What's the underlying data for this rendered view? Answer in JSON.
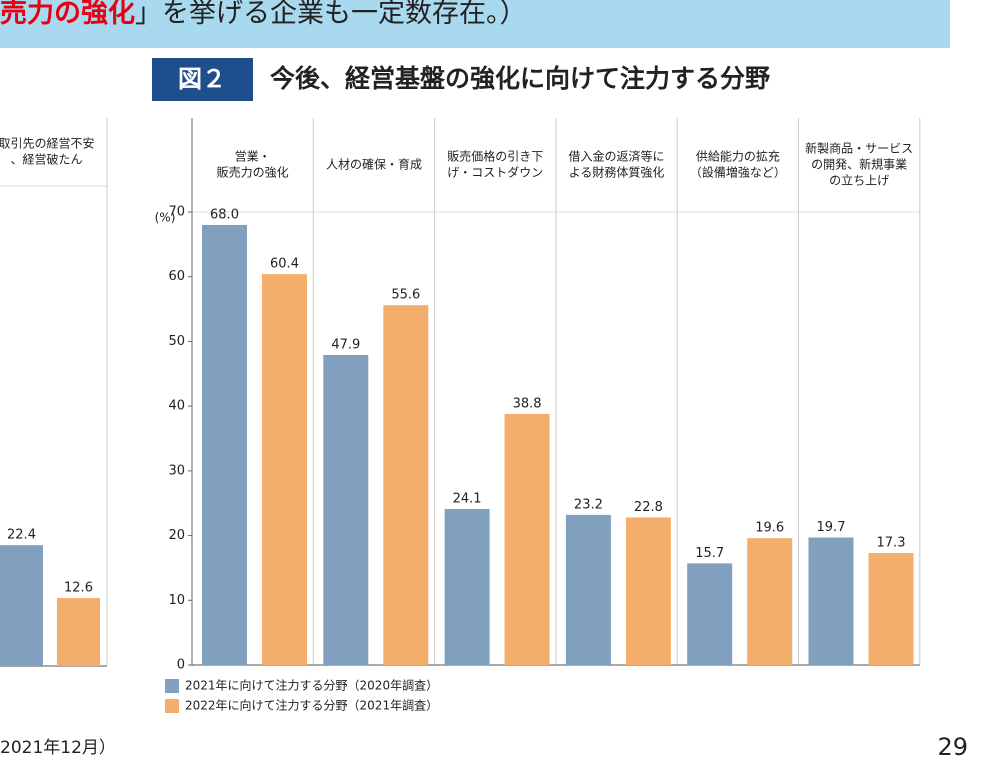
{
  "banner": {
    "highlight": "売力の強化",
    "rest": "」を挙げる企業も一定数存在。）"
  },
  "footer": {
    "source": "2021年12月）",
    "page": "29"
  },
  "chart_data": [
    {
      "type": "bar",
      "badge": "図２",
      "title": "今後、経営基盤の強化に向けて注力する分野",
      "unit": "(%)",
      "categories": [
        [
          "営業・",
          "販売力の強化"
        ],
        [
          "人材の確保・育成"
        ],
        [
          "販売価格の引き下",
          "げ・コストダウン"
        ],
        [
          "借入金の返済等に",
          "よる財務体質強化"
        ],
        [
          "供給能力の拡充",
          "（設備増強など）"
        ],
        [
          "新製商品・サービス",
          "の開発、新規事業",
          "の立ち上げ"
        ]
      ],
      "series": [
        {
          "name": "2021年に向けて注力する分野（2020年調査）",
          "color": "#819fbe",
          "values": [
            68.0,
            47.9,
            24.1,
            23.2,
            15.7,
            19.7
          ],
          "value_labels": [
            "68.0",
            "47.9",
            "24.1",
            "23.2",
            "15.7",
            "19.7"
          ]
        },
        {
          "name": "2022年に向けて注力する分野（2021年調査）",
          "color": "#f4ae6b",
          "values": [
            60.4,
            55.6,
            38.8,
            22.8,
            19.6,
            17.3
          ],
          "value_labels": [
            "60.4",
            "55.6",
            "38.8",
            "22.8",
            "19.6",
            "17.3"
          ]
        }
      ],
      "ylim": [
        0,
        70
      ],
      "yticks": [
        0,
        10,
        20,
        30,
        40,
        50,
        60,
        70
      ]
    },
    {
      "type": "bar",
      "categories": [
        [
          "取引先の経営不安",
          "、経営破たん"
        ]
      ],
      "series": [
        {
          "color": "#819fbe",
          "values": [
            22.4
          ],
          "value_labels": [
            "22.4"
          ]
        },
        {
          "color": "#f4ae6b",
          "values": [
            12.6
          ],
          "value_labels": [
            "12.6"
          ]
        }
      ],
      "ylim": [
        0,
        89
      ]
    }
  ]
}
